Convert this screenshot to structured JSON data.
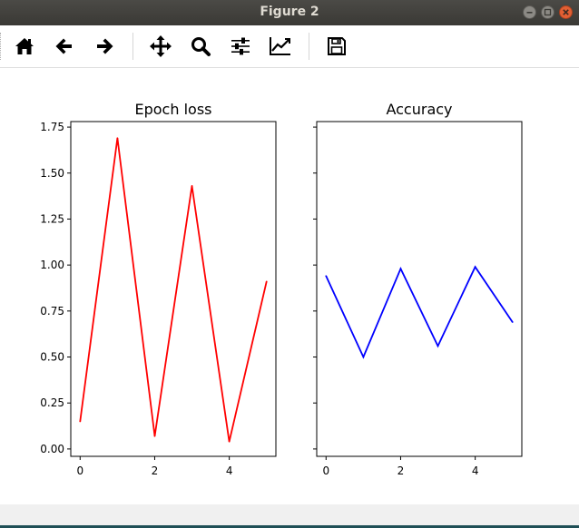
{
  "window": {
    "title": "Figure 2",
    "controls": [
      "minimize-icon",
      "maximize-icon",
      "close-icon"
    ]
  },
  "toolbar": {
    "buttons": [
      {
        "name": "home-icon",
        "tooltip": ""
      },
      {
        "name": "back-arrow-icon",
        "tooltip": ""
      },
      {
        "name": "forward-arrow-icon",
        "tooltip": ""
      },
      {
        "name": "pan-icon",
        "tooltip": ""
      },
      {
        "name": "zoom-icon",
        "tooltip": ""
      },
      {
        "name": "subplots-config-icon",
        "tooltip": ""
      },
      {
        "name": "edit-axes-icon",
        "tooltip": ""
      },
      {
        "name": "save-icon",
        "tooltip": ""
      }
    ]
  },
  "chart_data": [
    {
      "type": "line",
      "title": "Epoch loss",
      "xlabel": "",
      "ylabel": "",
      "x": [
        0,
        1,
        2,
        3,
        4,
        5
      ],
      "series": [
        {
          "values": [
            0.15,
            1.69,
            0.07,
            1.43,
            0.04,
            0.91
          ],
          "color": "#ff0000"
        }
      ],
      "xlim": [
        -0.25,
        5.25
      ],
      "ylim": [
        -0.04,
        1.78
      ],
      "xticks": [
        "0",
        "2",
        "4"
      ],
      "yticks": [
        "0.00",
        "0.25",
        "0.50",
        "0.75",
        "1.00",
        "1.25",
        "1.50",
        "1.75"
      ],
      "grid": false
    },
    {
      "type": "line",
      "title": "Accuracy",
      "xlabel": "",
      "ylabel": "",
      "x": [
        0,
        1,
        2,
        3,
        4,
        5
      ],
      "series": [
        {
          "values": [
            0.94,
            0.5,
            0.98,
            0.56,
            0.99,
            0.69
          ],
          "color": "#0000ff"
        }
      ],
      "xlim": [
        -0.25,
        5.25
      ],
      "ylim": [
        -0.04,
        1.78
      ],
      "xticks": [
        "0",
        "2",
        "4"
      ],
      "yticks_shared": true,
      "grid": false
    }
  ]
}
